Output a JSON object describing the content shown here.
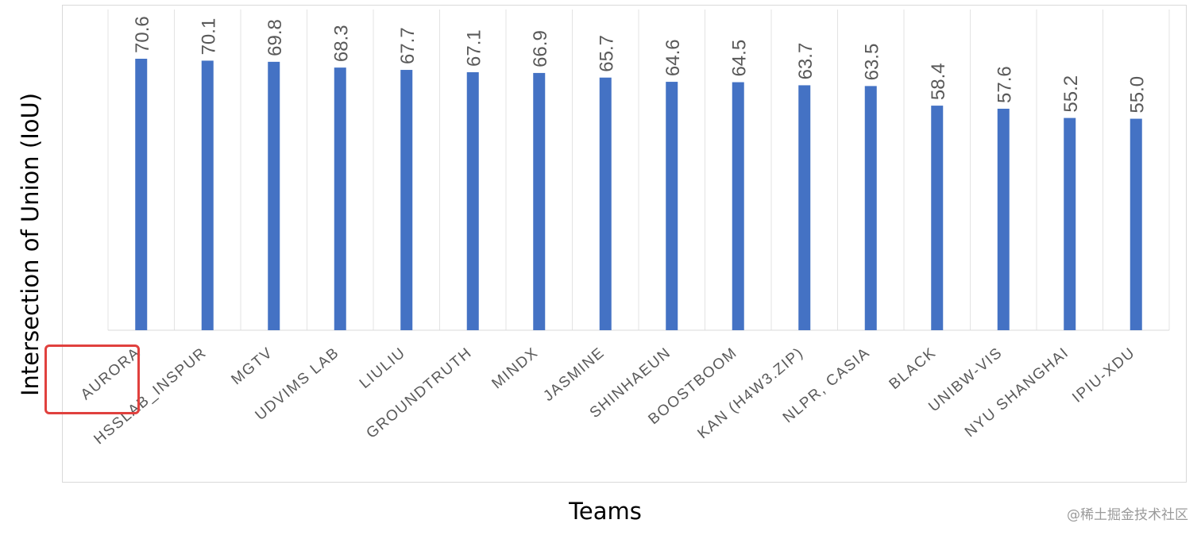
{
  "chart_data": {
    "type": "bar",
    "title": "",
    "xlabel": "Teams",
    "ylabel": "Intersection of Union (IoU)",
    "ylim": [
      0,
      72
    ],
    "grid": "vertical",
    "legend": "none",
    "bar_color": "#4472c4",
    "categories": [
      "AURORA",
      "HSSLAB_INSPUR",
      "MGTV",
      "UDVIMS LAB",
      "LIULIU",
      "GROUNDTRUTH",
      "MINDX",
      "JASMINE",
      "SHINHAEUN",
      "BOOSTBOOM",
      "KAN (H4W3.ZIP)",
      "NLPR, CASIA",
      "BLACK",
      "UNIBW-VIS",
      "NYU SHANGHAI",
      "IPIU-XDU"
    ],
    "values": [
      70.6,
      70.1,
      69.8,
      68.3,
      67.7,
      67.1,
      66.9,
      65.7,
      64.6,
      64.5,
      63.7,
      63.5,
      58.4,
      57.6,
      55.2,
      55.0
    ],
    "data_labels": [
      "70.6",
      "70.1",
      "69.8",
      "68.3",
      "67.7",
      "67.1",
      "66.9",
      "65.7",
      "64.6",
      "64.5",
      "63.7",
      "63.5",
      "58.4",
      "57.6",
      "55.2",
      "55.0"
    ],
    "highlighted_category": "AURORA",
    "highlight_color": "#e0413e"
  },
  "watermark": "@稀土掘金技术社区"
}
